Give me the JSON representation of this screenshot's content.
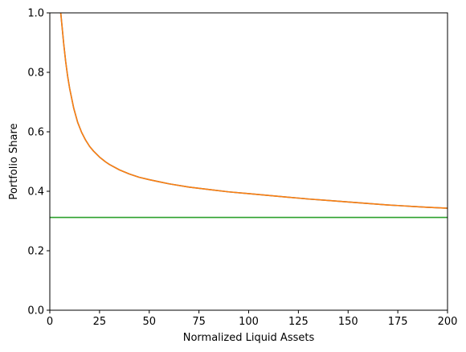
{
  "chart_data": {
    "type": "line",
    "title": "",
    "xlabel": "Normalized Liquid Assets",
    "ylabel": "Portfolio Share",
    "xlim": [
      0,
      200
    ],
    "ylim": [
      0.0,
      1.0
    ],
    "xticks": [
      0,
      25,
      50,
      75,
      100,
      125,
      150,
      175,
      200
    ],
    "xtick_labels": [
      "0",
      "25",
      "50",
      "75",
      "100",
      "125",
      "150",
      "175",
      "200"
    ],
    "yticks": [
      0.0,
      0.2,
      0.4,
      0.6,
      0.8,
      1.0
    ],
    "ytick_labels": [
      "0.0",
      "0.2",
      "0.4",
      "0.6",
      "0.8",
      "1.0"
    ],
    "grid": false,
    "series": [
      {
        "color": "#1f77b4",
        "x": [
          5.5,
          6,
          7,
          8,
          9,
          10,
          12,
          14,
          16,
          18,
          20,
          22,
          25,
          28,
          30,
          35,
          40,
          45,
          50,
          55,
          60,
          70,
          75,
          80,
          90,
          100,
          110,
          120,
          125,
          130,
          140,
          150,
          160,
          170,
          175,
          180,
          190,
          200
        ],
        "y": [
          1.0,
          0.965,
          0.895,
          0.835,
          0.785,
          0.745,
          0.68,
          0.632,
          0.598,
          0.572,
          0.551,
          0.535,
          0.515,
          0.499,
          0.49,
          0.472,
          0.458,
          0.447,
          0.439,
          0.432,
          0.425,
          0.414,
          0.41,
          0.406,
          0.398,
          0.392,
          0.386,
          0.38,
          0.377,
          0.374,
          0.369,
          0.364,
          0.359,
          0.354,
          0.352,
          0.35,
          0.346,
          0.343
        ]
      },
      {
        "color": "#ff7f0e",
        "x": [
          5.5,
          6,
          7,
          8,
          9,
          10,
          12,
          14,
          16,
          18,
          20,
          22,
          25,
          28,
          30,
          35,
          40,
          45,
          50,
          55,
          60,
          70,
          75,
          80,
          90,
          100,
          110,
          120,
          125,
          130,
          140,
          150,
          160,
          170,
          175,
          180,
          190,
          200
        ],
        "y": [
          1.0,
          0.965,
          0.895,
          0.835,
          0.785,
          0.745,
          0.68,
          0.632,
          0.598,
          0.572,
          0.551,
          0.535,
          0.515,
          0.499,
          0.49,
          0.472,
          0.458,
          0.447,
          0.439,
          0.432,
          0.425,
          0.414,
          0.41,
          0.406,
          0.398,
          0.392,
          0.386,
          0.38,
          0.377,
          0.374,
          0.369,
          0.364,
          0.359,
          0.354,
          0.352,
          0.35,
          0.346,
          0.343
        ]
      },
      {
        "color": "#2ca02c",
        "x": [
          0,
          200
        ],
        "y": [
          0.312,
          0.312
        ]
      }
    ]
  }
}
